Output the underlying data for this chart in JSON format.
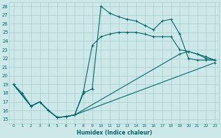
{
  "xlabel": "Humidex (Indice chaleur)",
  "bg_color": "#cce8e8",
  "grid_color": "#aacccc",
  "line_color": "#006666",
  "xlim": [
    -0.5,
    23.5
  ],
  "ylim": [
    14.5,
    28.5
  ],
  "xticks": [
    0,
    1,
    2,
    3,
    4,
    5,
    6,
    7,
    8,
    9,
    10,
    11,
    12,
    13,
    14,
    15,
    16,
    17,
    18,
    19,
    20,
    21,
    22,
    23
  ],
  "yticks": [
    15,
    16,
    17,
    18,
    19,
    20,
    21,
    22,
    23,
    24,
    25,
    26,
    27,
    28
  ],
  "line1_x": [
    0,
    1,
    2,
    3,
    4,
    5,
    6,
    7,
    8,
    9,
    10,
    11,
    12,
    13,
    14,
    15,
    16,
    17,
    18,
    19,
    20,
    21,
    22,
    23
  ],
  "line1_y": [
    19.0,
    18.0,
    16.5,
    17.0,
    16.0,
    15.2,
    15.3,
    15.5,
    18.0,
    18.5,
    28.0,
    27.2,
    26.8,
    26.5,
    26.3,
    25.8,
    25.3,
    26.3,
    26.5,
    24.8,
    22.0,
    21.8,
    21.8,
    21.8
  ],
  "line2_x": [
    0,
    2,
    3,
    4,
    5,
    6,
    7,
    8,
    9,
    10,
    11,
    12,
    13,
    14,
    15,
    16,
    17,
    18,
    19,
    20,
    21,
    22,
    23
  ],
  "line2_y": [
    19.0,
    16.5,
    17.0,
    16.0,
    15.2,
    15.3,
    15.5,
    18.2,
    23.5,
    24.5,
    24.8,
    25.0,
    25.0,
    25.0,
    24.8,
    24.5,
    24.5,
    24.5,
    23.0,
    22.8,
    22.5,
    22.2,
    21.8
  ],
  "line3_x": [
    0,
    2,
    3,
    4,
    5,
    6,
    7,
    19,
    20,
    21,
    22,
    23
  ],
  "line3_y": [
    19.0,
    16.5,
    17.0,
    16.0,
    15.2,
    15.3,
    15.5,
    22.5,
    22.8,
    22.5,
    22.0,
    21.8
  ],
  "line4_x": [
    0,
    2,
    3,
    4,
    5,
    6,
    7,
    23
  ],
  "line4_y": [
    19.0,
    16.5,
    17.0,
    16.0,
    15.2,
    15.3,
    15.5,
    21.5
  ]
}
